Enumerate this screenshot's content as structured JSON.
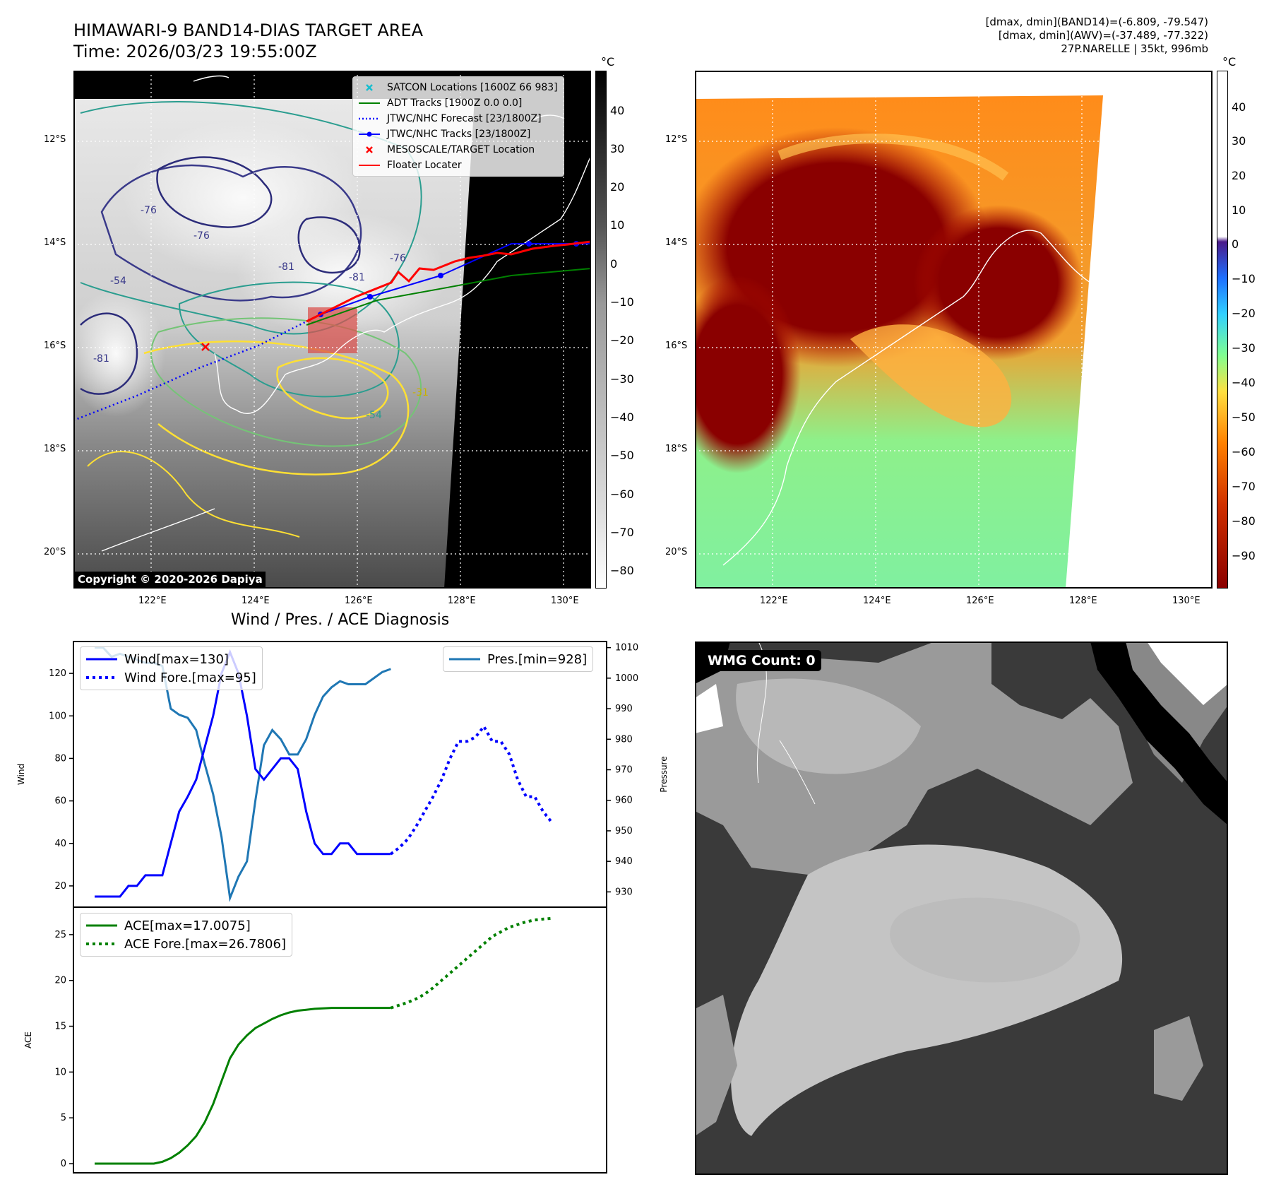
{
  "header": {
    "title_line1": "HIMAWARI-9 BAND14-DIAS TARGET AREA",
    "title_line2": "Time: 2026/03/23 19:55:00Z",
    "info_line1": "[dmax, dmin](BAND14)=(-6.809, -79.547)",
    "info_line2": "[dmax, dmin](AWV)=(-37.489, -77.322)",
    "info_line3": "27P.NARELLE | 35kt, 996mb"
  },
  "maps": {
    "lat_labels": [
      "12°S",
      "14°S",
      "16°S",
      "18°S",
      "20°S"
    ],
    "lon_labels": [
      "122°E",
      "124°E",
      "126°E",
      "128°E",
      "130°E"
    ],
    "contour_labels": [
      "-76",
      "-76",
      "-81",
      "-76",
      "-81",
      "-81",
      "-54",
      "-54",
      "-31"
    ],
    "copyright": "Copyright © 2020-2026 Dapiya",
    "legend": [
      {
        "label": "SATCON Locations [1600Z 66 983]",
        "color": "#17becf",
        "style": "x"
      },
      {
        "label": "ADT Tracks [1900Z 0.0 0.0]",
        "color": "#008000",
        "style": "line"
      },
      {
        "label": "JTWC/NHC Forecast [23/1800Z]",
        "color": "#0000ff",
        "style": "dotted"
      },
      {
        "label": "JTWC/NHC Tracks [23/1800Z]",
        "color": "#0000ff",
        "style": "line-dot"
      },
      {
        "label": "MESOSCALE/TARGET Location",
        "color": "#ff0000",
        "style": "x"
      },
      {
        "label": "Floater Locater",
        "color": "#ff0000",
        "style": "line"
      }
    ],
    "colorbar1": {
      "unit": "°C",
      "ticks": [
        "40",
        "30",
        "20",
        "10",
        "0",
        "−10",
        "−20",
        "−30",
        "−40",
        "−50",
        "−60",
        "−70",
        "−80"
      ]
    },
    "colorbar2": {
      "unit": "°C",
      "ticks": [
        "40",
        "30",
        "20",
        "10",
        "0",
        "−10",
        "−20",
        "−30",
        "−40",
        "−50",
        "−60",
        "−70",
        "−80",
        "−90"
      ]
    }
  },
  "diag": {
    "title": "Wind / Pres. / ACE Diagnosis",
    "wind_axis_label": "Wind",
    "pressure_axis_label": "Pressure",
    "ace_axis_label": "ACE",
    "legend_wind": "Wind[max=130]",
    "legend_wind_fore": "Wind Fore.[max=95]",
    "legend_pres": "Pres.[min=928]",
    "legend_ace": "ACE[max=17.0075]",
    "legend_ace_fore": "ACE Fore.[max=26.7806]",
    "wmg_label": "WMG Count: 0"
  },
  "chart_data": [
    {
      "type": "line",
      "title": "Wind / Pres. / ACE Diagnosis",
      "ylabel": "Wind",
      "ylim": [
        10,
        135
      ],
      "y_ticks": [
        20,
        40,
        60,
        80,
        100,
        120
      ],
      "series": [
        {
          "name": "Wind[max=130]",
          "color": "#0000ff",
          "style": "solid",
          "axis": "left",
          "x": [
            0,
            1,
            2,
            3,
            4,
            5,
            6,
            7,
            8,
            9,
            10,
            11,
            12,
            13,
            14,
            15,
            16,
            17,
            18,
            19,
            20,
            21,
            22,
            23,
            24,
            25,
            26,
            27,
            28,
            29,
            30,
            31,
            32,
            33,
            34,
            35
          ],
          "values": [
            15,
            15,
            15,
            15,
            20,
            20,
            25,
            25,
            25,
            40,
            55,
            62,
            70,
            85,
            100,
            120,
            130,
            120,
            100,
            75,
            70,
            75,
            80,
            80,
            75,
            55,
            40,
            35,
            35,
            40,
            40,
            35,
            35,
            35,
            35,
            35
          ]
        },
        {
          "name": "Wind Fore.[max=95]",
          "color": "#0000ff",
          "style": "dotted",
          "axis": "left",
          "x": [
            35,
            36,
            37,
            38,
            39,
            40,
            41,
            42,
            43,
            44,
            45,
            46,
            47,
            48,
            49,
            50,
            51,
            52,
            53,
            54
          ],
          "values": [
            35,
            38,
            42,
            48,
            55,
            62,
            70,
            80,
            88,
            88,
            90,
            95,
            88,
            88,
            82,
            70,
            62,
            62,
            55,
            50
          ]
        },
        {
          "name": "Pres.[min=928]",
          "color": "#1f77b4",
          "style": "solid",
          "axis": "right",
          "ylim": [
            925,
            1012
          ],
          "y_ticks": [
            930,
            940,
            950,
            960,
            970,
            980,
            990,
            1000,
            1010
          ],
          "x": [
            0,
            1,
            2,
            3,
            4,
            5,
            6,
            7,
            8,
            9,
            10,
            11,
            12,
            13,
            14,
            15,
            16,
            17,
            18,
            19,
            20,
            21,
            22,
            23,
            24,
            25,
            26,
            27,
            28,
            29,
            30,
            31,
            32,
            33,
            34,
            35
          ],
          "values": [
            1010,
            1010,
            1007,
            1008,
            1007,
            1006,
            1005,
            1005,
            1004,
            990,
            988,
            987,
            983,
            972,
            962,
            948,
            928,
            935,
            940,
            960,
            978,
            983,
            980,
            975,
            975,
            980,
            988,
            994,
            997,
            999,
            998,
            998,
            998,
            1000,
            1002,
            1003
          ]
        }
      ]
    },
    {
      "type": "line",
      "ylabel": "ACE",
      "ylim": [
        -1,
        28
      ],
      "y_ticks": [
        0,
        5,
        10,
        15,
        20,
        25
      ],
      "series": [
        {
          "name": "ACE[max=17.0075]",
          "color": "#008000",
          "style": "solid",
          "x": [
            0,
            1,
            2,
            3,
            4,
            5,
            6,
            7,
            8,
            9,
            10,
            11,
            12,
            13,
            14,
            15,
            16,
            17,
            18,
            19,
            20,
            21,
            22,
            23,
            24,
            25,
            26,
            27,
            28,
            29,
            30,
            31,
            32,
            33,
            34,
            35
          ],
          "values": [
            0,
            0,
            0,
            0,
            0,
            0,
            0,
            0,
            0.2,
            0.6,
            1.2,
            2.0,
            3.0,
            4.5,
            6.5,
            9.0,
            11.5,
            13.0,
            14.0,
            14.8,
            15.3,
            15.8,
            16.2,
            16.5,
            16.7,
            16.8,
            16.9,
            16.95,
            17.0,
            17.0,
            17.0,
            17.0,
            17.0,
            17.0,
            17.0,
            17.0
          ]
        },
        {
          "name": "ACE Fore.[max=26.7806]",
          "color": "#008000",
          "style": "dotted",
          "x": [
            35,
            36,
            37,
            38,
            39,
            40,
            41,
            42,
            43,
            44,
            45,
            46,
            47,
            48,
            49,
            50,
            51,
            52,
            53,
            54
          ],
          "values": [
            17.0,
            17.3,
            17.6,
            18.0,
            18.5,
            19.2,
            20.0,
            20.8,
            21.6,
            22.4,
            23.2,
            24.0,
            24.8,
            25.3,
            25.8,
            26.1,
            26.4,
            26.6,
            26.7,
            26.78
          ]
        }
      ]
    }
  ]
}
